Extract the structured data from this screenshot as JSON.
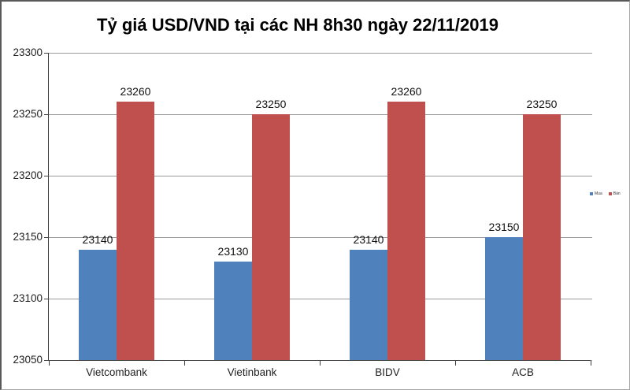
{
  "chart_data": {
    "type": "bar",
    "title": "Tỷ giá USD/VND tại các NH 8h30 ngày 22/11/2019",
    "categories": [
      "Vietcombank",
      "Vietinbank",
      "BIDV",
      "ACB"
    ],
    "series": [
      {
        "name": "Mua",
        "color": "#4F81BD",
        "values": [
          23140,
          23130,
          23140,
          23150
        ]
      },
      {
        "name": "Bán",
        "color": "#C0504D",
        "values": [
          23260,
          23250,
          23260,
          23250
        ]
      }
    ],
    "ylim": [
      23050,
      23300
    ],
    "yticks": [
      23050,
      23100,
      23150,
      23200,
      23250,
      23300
    ],
    "grid": true,
    "legend_position": "right",
    "data_labels": true,
    "colors": {
      "gridline": "#9a9a9a",
      "axis": "#404040",
      "text": "#1f1f1f"
    }
  }
}
